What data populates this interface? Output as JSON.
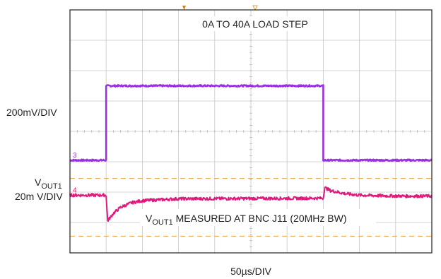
{
  "chart_data": {
    "type": "line",
    "title": "0A TO 40A LOAD STEP",
    "annotation": {
      "main": "V",
      "sub": "OUT1",
      "rest": " MEASURED AT BNC J11 (20MHz BW)"
    },
    "xlabel": "50µs/DIV",
    "ylabels": {
      "ch3": "200mV/DIV",
      "ch4_main": "V",
      "ch4_sub": "OUT1",
      "ch4_scale": "20m V/DIV"
    },
    "x_divisions": 10,
    "y_divisions": 8,
    "x_unit": "µs",
    "grid": true,
    "series": [
      {
        "name": "3",
        "color": "#9b30e0",
        "x": [
          0,
          50,
          50,
          350,
          350,
          500
        ],
        "y": [
          3.05,
          3.05,
          5.5,
          5.5,
          3.05,
          3.05
        ]
      },
      {
        "name": "4",
        "color": "#e0197d",
        "x": [
          0,
          50,
          52,
          60,
          70,
          85,
          100,
          150,
          350,
          352,
          360,
          380,
          400,
          430,
          460,
          500
        ],
        "y": [
          1.9,
          1.9,
          1.05,
          1.3,
          1.5,
          1.65,
          1.72,
          1.78,
          1.8,
          2.15,
          2.05,
          1.95,
          1.9,
          1.88,
          1.87,
          1.87
        ]
      }
    ],
    "trigger_lines": [
      {
        "y": 2.45,
        "color": "#f0a040"
      },
      {
        "y": 0.55,
        "color": "#f0a040"
      }
    ]
  }
}
